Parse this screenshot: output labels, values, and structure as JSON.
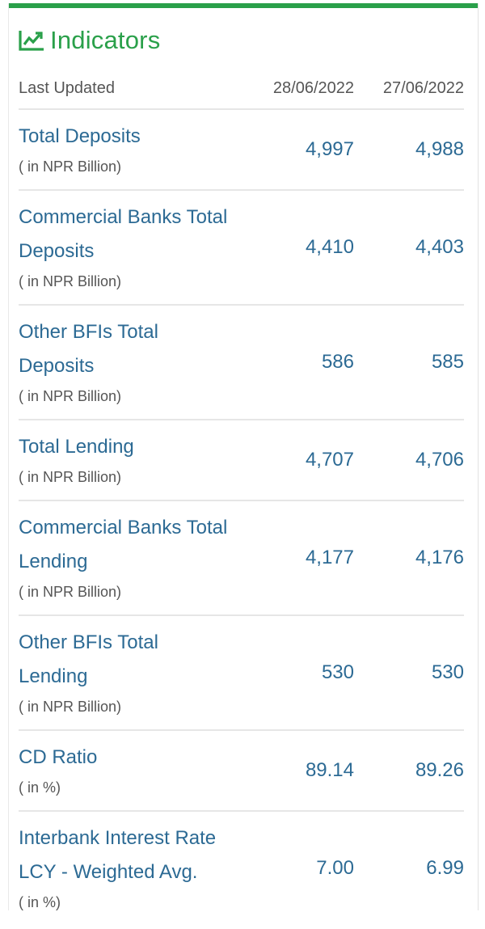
{
  "widget": {
    "title": "Indicators",
    "icon": "trend-chart-icon",
    "accent_color": "#2aa04a",
    "label_color": "#2c6a94"
  },
  "table": {
    "header": {
      "label": "Last Updated",
      "date1": "28/06/2022",
      "date2": "27/06/2022"
    },
    "rows": [
      {
        "name_lines": [
          "Total Deposits"
        ],
        "unit": "( in NPR Billion)",
        "v1": "4,997",
        "v2": "4,988"
      },
      {
        "name_lines": [
          "Commercial Banks Total",
          "Deposits"
        ],
        "unit": "( in NPR Billion)",
        "v1": "4,410",
        "v2": "4,403"
      },
      {
        "name_lines": [
          "Other BFIs Total",
          "Deposits"
        ],
        "unit": "( in NPR Billion)",
        "v1": "586",
        "v2": "585"
      },
      {
        "name_lines": [
          "Total Lending"
        ],
        "unit": "( in NPR Billion)",
        "v1": "4,707",
        "v2": "4,706"
      },
      {
        "name_lines": [
          "Commercial Banks Total",
          "Lending"
        ],
        "unit": "( in NPR Billion)",
        "v1": "4,177",
        "v2": "4,176"
      },
      {
        "name_lines": [
          "Other BFIs Total",
          "Lending"
        ],
        "unit": "( in NPR Billion)",
        "v1": "530",
        "v2": "530"
      },
      {
        "name_lines": [
          "CD Ratio"
        ],
        "unit": "( in %)",
        "v1": "89.14",
        "v2": "89.26"
      },
      {
        "name_lines": [
          "Interbank Interest Rate",
          "LCY - Weighted Avg."
        ],
        "unit": "( in %)",
        "v1": "7.00",
        "v2": "6.99"
      }
    ]
  }
}
